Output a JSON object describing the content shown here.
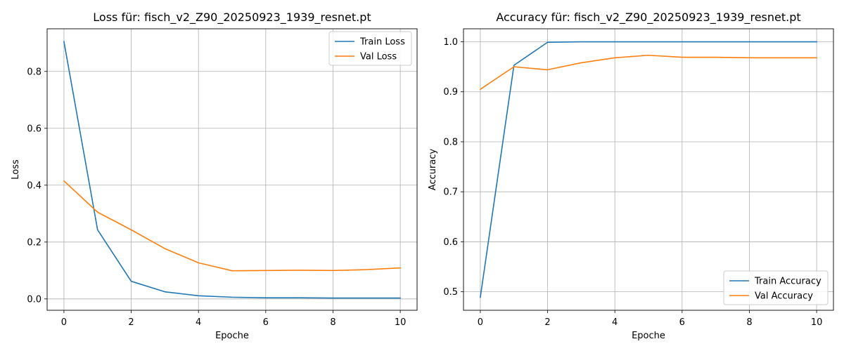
{
  "chart_data": [
    {
      "type": "line",
      "title": "Loss für: fisch_v2_Z90_20250923_1939_resnet.pt",
      "xlabel": "Epoche",
      "ylabel": "Loss",
      "xlim": [
        -0.5,
        10.5
      ],
      "ylim": [
        -0.04,
        0.95
      ],
      "xticks": [
        0,
        2,
        4,
        6,
        8,
        10
      ],
      "yticks": [
        0.0,
        0.2,
        0.4,
        0.6,
        0.8
      ],
      "ytick_decimals": 1,
      "grid": true,
      "legend_position": "top-right",
      "x": [
        0,
        1,
        2,
        3,
        4,
        5,
        6,
        7,
        8,
        9,
        10
      ],
      "series": [
        {
          "name": "Train Loss",
          "color": "#1f77b4",
          "values": [
            0.905,
            0.243,
            0.062,
            0.025,
            0.011,
            0.006,
            0.004,
            0.004,
            0.003,
            0.003,
            0.003
          ]
        },
        {
          "name": "Val Loss",
          "color": "#ff7f0e",
          "values": [
            0.415,
            0.305,
            0.243,
            0.177,
            0.127,
            0.099,
            0.1,
            0.101,
            0.1,
            0.103,
            0.109
          ]
        }
      ]
    },
    {
      "type": "line",
      "title": "Accuracy für: fisch_v2_Z90_20250923_1939_resnet.pt",
      "xlabel": "Epoche",
      "ylabel": "Accuracy",
      "xlim": [
        -0.5,
        10.5
      ],
      "ylim": [
        0.463,
        1.026
      ],
      "xticks": [
        0,
        2,
        4,
        6,
        8,
        10
      ],
      "yticks": [
        0.5,
        0.6,
        0.7,
        0.8,
        0.9,
        1.0
      ],
      "ytick_decimals": 1,
      "grid": true,
      "legend_position": "bottom-right",
      "x": [
        0,
        1,
        2,
        3,
        4,
        5,
        6,
        7,
        8,
        9,
        10
      ],
      "series": [
        {
          "name": "Train Accuracy",
          "color": "#1f77b4",
          "values": [
            0.489,
            0.953,
            0.999,
            1.0,
            1.0,
            1.0,
            1.0,
            1.0,
            1.0,
            1.0,
            1.0
          ]
        },
        {
          "name": "Val Accuracy",
          "color": "#ff7f0e",
          "values": [
            0.905,
            0.95,
            0.944,
            0.958,
            0.968,
            0.973,
            0.969,
            0.969,
            0.968,
            0.968,
            0.968
          ]
        }
      ]
    }
  ]
}
